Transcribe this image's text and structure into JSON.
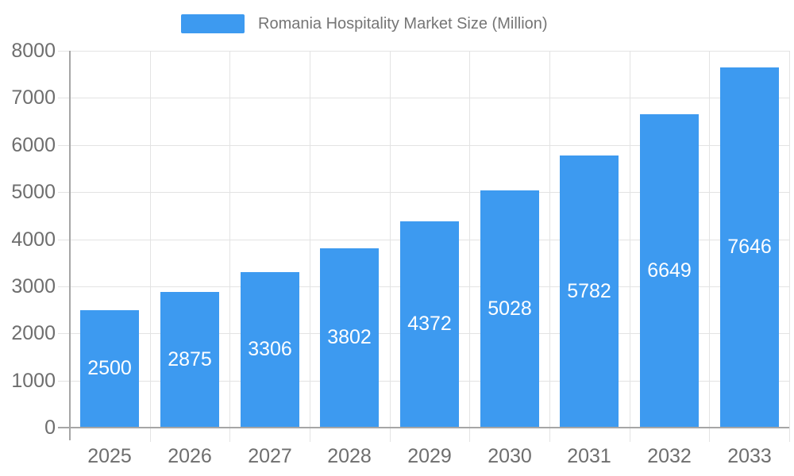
{
  "legend": {
    "label": "Romania Hospitality Market Size (Million)"
  },
  "chart_data": {
    "type": "bar",
    "title": "Romania Hospitality Market Size (Million)",
    "categories": [
      "2025",
      "2026",
      "2027",
      "2028",
      "2029",
      "2030",
      "2031",
      "2032",
      "2033"
    ],
    "values": [
      2500,
      2875,
      3306,
      3802,
      4372,
      5028,
      5782,
      6649,
      7646
    ],
    "series": [
      {
        "name": "Romania Hospitality Market Size (Million)",
        "values": [
          2500,
          2875,
          3306,
          3802,
          4372,
          5028,
          5782,
          6649,
          7646
        ]
      }
    ],
    "xlabel": "",
    "ylabel": "",
    "ylim": [
      0,
      8000
    ],
    "ytick_step": 1000,
    "yticks": [
      0,
      1000,
      2000,
      3000,
      4000,
      5000,
      6000,
      7000,
      8000
    ],
    "grid": true,
    "legend_position": "top-center",
    "value_labels": "inside-center"
  },
  "colors": {
    "bar": "#3D9AF0",
    "grid": "#E3E3E3",
    "axis": "#A6A6A6",
    "axis_text": "#6E6E6E",
    "legend_text": "#757575",
    "value_label": "#FFFFFF",
    "background": "#FFFFFF"
  }
}
